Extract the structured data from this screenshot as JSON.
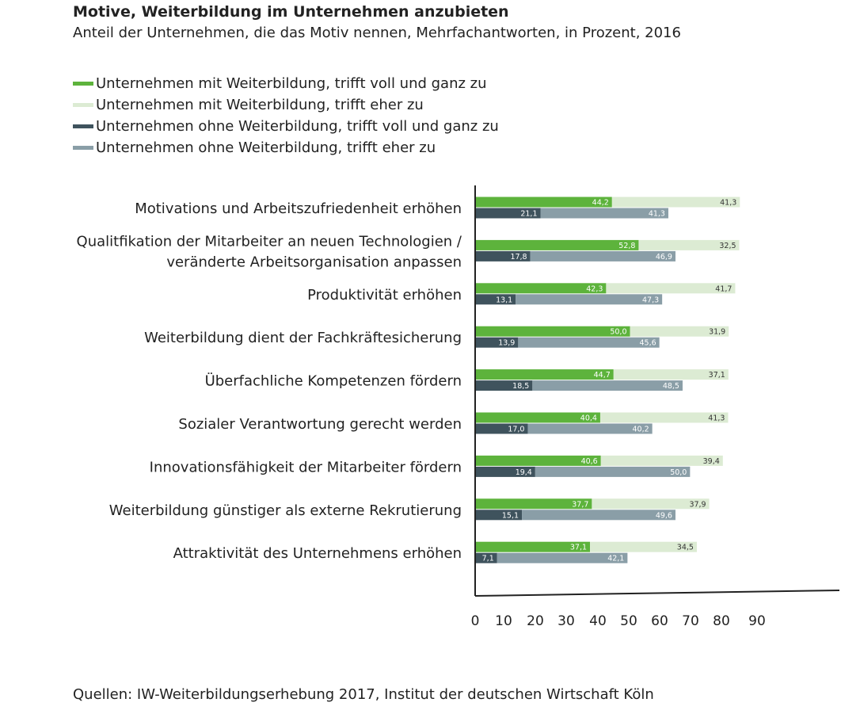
{
  "title": "Motive, Weiterbildung im Unternehmen anzubieten",
  "subtitle": "Anteil der Unternehmen, die das Motiv nennen, Mehrfachantworten, in Prozent, 2016",
  "source": "Quellen: IW-Weiterbildungserhebung 2017, Institut der deutschen Wirtschaft Köln",
  "legend": [
    {
      "label": "Unternehmen mit Weiterbildung, trifft voll und ganz zu",
      "color": "#5db33c"
    },
    {
      "label": "Unternehmen mit Weiterbildung, trifft eher zu",
      "color": "#dcebd3"
    },
    {
      "label": "Unternehmen ohne Weiterbildung, trifft voll und ganz zu",
      "color": "#3f535d"
    },
    {
      "label": "Unternehmen ohne Weiterbildung, trifft eher zu",
      "color": "#8a9ea7"
    }
  ],
  "chart_data": {
    "type": "bar",
    "orientation": "horizontal",
    "stacked": true,
    "categories": [
      [
        "Motivations und Arbeitszufriedenheit erhöhen"
      ],
      [
        "Qualitfikation der Mitarbeiter an neuen Technologien /",
        "veränderte Arbeitsorganisation anpassen"
      ],
      [
        "Produktivität erhöhen"
      ],
      [
        "Weiterbildung dient der Fachkräftesicherung"
      ],
      [
        "Überfachliche Kompetenzen fördern"
      ],
      [
        "Sozialer Verantwortung gerecht werden"
      ],
      [
        "Innovationsfähigkeit der Mitarbeiter fördern"
      ],
      [
        "Weiterbildung günstiger als externe Rekrutierung"
      ],
      [
        "Attraktivität des Unternehmens erhöhen"
      ]
    ],
    "groups": [
      {
        "name": "Unternehmen mit Weiterbildung",
        "series": [
          {
            "name": "trifft voll und ganz zu",
            "color": "#5db33c",
            "values": [
              44.2,
              52.8,
              42.3,
              50.0,
              44.7,
              40.4,
              40.6,
              37.7,
              37.1
            ],
            "labels": [
              "44,2",
              "52,8",
              "42,3",
              "50,0",
              "44,7",
              "40,4",
              "40,6",
              "37,7",
              "37,1"
            ]
          },
          {
            "name": "trifft eher zu",
            "color": "#dcebd3",
            "values": [
              41.3,
              32.5,
              41.7,
              31.9,
              37.1,
              41.3,
              39.4,
              37.9,
              34.5
            ],
            "labels": [
              "41,3",
              "32,5",
              "41,7",
              "31,9",
              "37,1",
              "41,3",
              "39,4",
              "37,9",
              "34,5"
            ]
          }
        ]
      },
      {
        "name": "Unternehmen ohne Weiterbildung",
        "series": [
          {
            "name": "trifft voll und ganz zu",
            "color": "#3f535d",
            "values": [
              21.1,
              17.8,
              13.1,
              13.9,
              18.5,
              17.0,
              19.4,
              15.1,
              7.1
            ],
            "labels": [
              "21,1",
              "17,8",
              "13,1",
              "13,9",
              "18,5",
              "17,0",
              "19,4",
              "15,1",
              "7,1"
            ]
          },
          {
            "name": "trifft eher zu",
            "color": "#8a9ea7",
            "values": [
              41.3,
              46.9,
              47.3,
              45.6,
              48.5,
              40.2,
              50.0,
              49.6,
              42.1
            ],
            "labels": [
              "41,3",
              "46,9",
              "47,3",
              "45,6",
              "48,5",
              "40,2",
              "50,0",
              "49,6",
              "42,1"
            ]
          }
        ]
      }
    ],
    "x_ticks": [
      "0",
      "10",
      "20",
      "30",
      "40",
      "50",
      "60",
      "70",
      "80",
      "90"
    ],
    "xlim": [
      0,
      90
    ],
    "grid": false,
    "legend_position": "top-left"
  }
}
